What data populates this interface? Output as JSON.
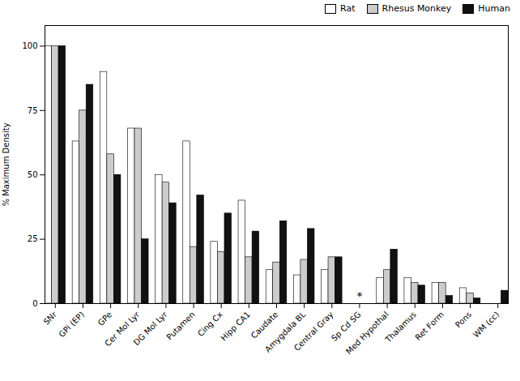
{
  "chart_data": {
    "type": "bar",
    "categories": [
      "SNr",
      "GPi (EP)",
      "GPe",
      "Cer Mol Lyr",
      "DG Mol Lyr",
      "Putamen",
      "Cing Cx",
      "Hipp CA1",
      "Caudate",
      "Amygdala BL",
      "Central Gray",
      "Sp Cd SG",
      "Med Hypothal",
      "Thalamus",
      "Ret Form",
      "Pons",
      "WM (cc)"
    ],
    "series": [
      {
        "name": "Rat",
        "color": "#ffffff",
        "values": [
          100,
          63,
          90,
          68,
          50,
          63,
          24,
          40,
          13,
          11,
          13,
          0,
          10,
          10,
          8,
          6,
          0
        ]
      },
      {
        "name": "Rhesus Monkey",
        "color": "#cccccc",
        "values": [
          100,
          75,
          58,
          68,
          47,
          22,
          20,
          18,
          16,
          17,
          18,
          0,
          13,
          8,
          8,
          4,
          0
        ]
      },
      {
        "name": "Human",
        "color": "#111111",
        "values": [
          100,
          85,
          50,
          25,
          39,
          42,
          35,
          28,
          32,
          29,
          18,
          0,
          21,
          7,
          3,
          2,
          5
        ]
      }
    ],
    "ylabel": "% Maximum Density",
    "ylim": [
      0,
      108
    ],
    "yticks": [
      0,
      25,
      50,
      75,
      100
    ],
    "annotations": [
      {
        "text": "*",
        "x": "Sp Cd SG",
        "y": 1.5
      }
    ],
    "legend": "upper right",
    "grid": false
  }
}
